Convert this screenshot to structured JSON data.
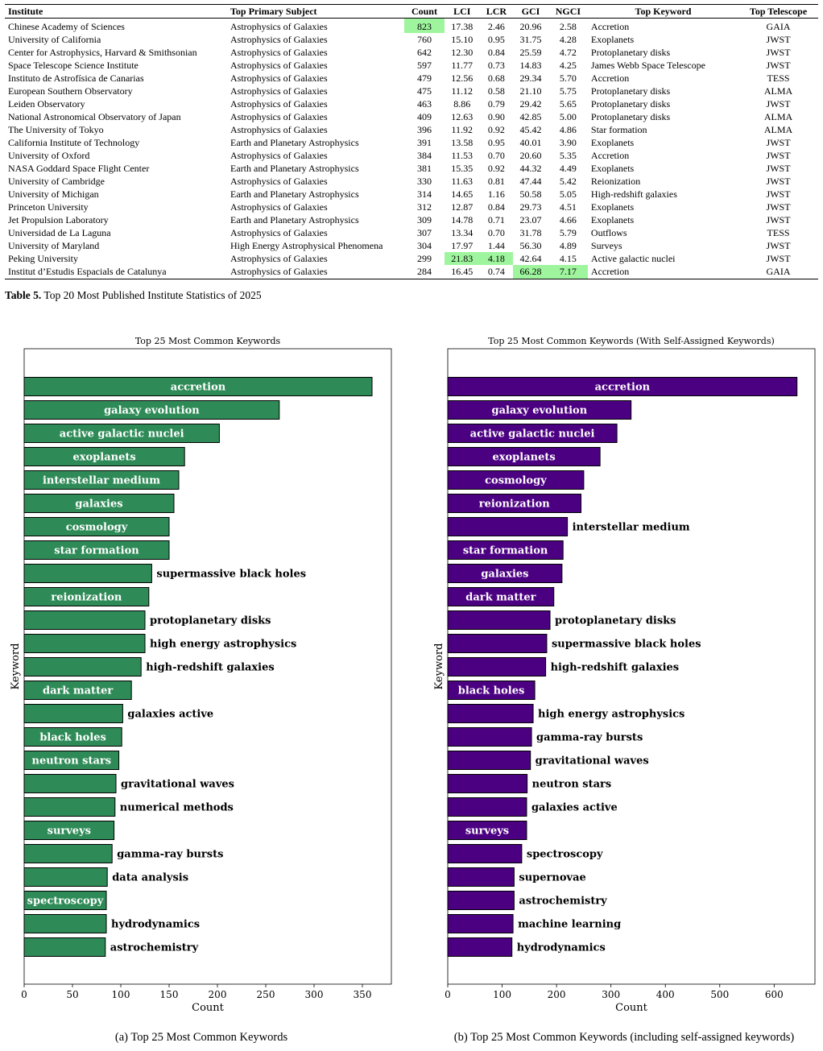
{
  "table": {
    "columns": [
      "Institute",
      "Top Primary Subject",
      "Count",
      "LCI",
      "LCR",
      "GCI",
      "NGCI",
      "Top Keyword",
      "Top Telescope"
    ],
    "rows": [
      [
        "Chinese Academy of Sciences",
        "Astrophysics of Galaxies",
        "823",
        "17.38",
        "2.46",
        "20.96",
        "2.58",
        "Accretion",
        "GAIA"
      ],
      [
        "University of California",
        "Astrophysics of Galaxies",
        "760",
        "15.10",
        "0.95",
        "31.75",
        "4.28",
        "Exoplanets",
        "JWST"
      ],
      [
        "Center for Astrophysics, Harvard & Smithsonian",
        "Astrophysics of Galaxies",
        "642",
        "12.30",
        "0.84",
        "25.59",
        "4.72",
        "Protoplanetary disks",
        "JWST"
      ],
      [
        "Space Telescope Science Institute",
        "Astrophysics of Galaxies",
        "597",
        "11.77",
        "0.73",
        "14.83",
        "4.25",
        "James Webb Space Telescope",
        "JWST"
      ],
      [
        "Instituto de Astrofísica de Canarias",
        "Astrophysics of Galaxies",
        "479",
        "12.56",
        "0.68",
        "29.34",
        "5.70",
        "Accretion",
        "TESS"
      ],
      [
        "European Southern Observatory",
        "Astrophysics of Galaxies",
        "475",
        "11.12",
        "0.58",
        "21.10",
        "5.75",
        "Protoplanetary disks",
        "ALMA"
      ],
      [
        "Leiden Observatory",
        "Astrophysics of Galaxies",
        "463",
        "8.86",
        "0.79",
        "29.42",
        "5.65",
        "Protoplanetary disks",
        "JWST"
      ],
      [
        "National Astronomical Observatory of Japan",
        "Astrophysics of Galaxies",
        "409",
        "12.63",
        "0.90",
        "42.85",
        "5.00",
        "Protoplanetary disks",
        "ALMA"
      ],
      [
        "The University of Tokyo",
        "Astrophysics of Galaxies",
        "396",
        "11.92",
        "0.92",
        "45.42",
        "4.86",
        "Star formation",
        "ALMA"
      ],
      [
        "California Institute of Technology",
        "Earth and Planetary Astrophysics",
        "391",
        "13.58",
        "0.95",
        "40.01",
        "3.90",
        "Exoplanets",
        "JWST"
      ],
      [
        "University of Oxford",
        "Astrophysics of Galaxies",
        "384",
        "11.53",
        "0.70",
        "20.60",
        "5.35",
        "Accretion",
        "JWST"
      ],
      [
        "NASA Goddard Space Flight Center",
        "Earth and Planetary Astrophysics",
        "381",
        "15.35",
        "0.92",
        "44.32",
        "4.49",
        "Exoplanets",
        "JWST"
      ],
      [
        "University of Cambridge",
        "Astrophysics of Galaxies",
        "330",
        "11.63",
        "0.81",
        "47.44",
        "5.42",
        "Reionization",
        "JWST"
      ],
      [
        "University of Michigan",
        "Earth and Planetary Astrophysics",
        "314",
        "14.65",
        "1.16",
        "50.58",
        "5.05",
        "High-redshift galaxies",
        "JWST"
      ],
      [
        "Princeton University",
        "Astrophysics of Galaxies",
        "312",
        "12.87",
        "0.84",
        "29.73",
        "4.51",
        "Exoplanets",
        "JWST"
      ],
      [
        "Jet Propulsion Laboratory",
        "Earth and Planetary Astrophysics",
        "309",
        "14.78",
        "0.71",
        "23.07",
        "4.66",
        "Exoplanets",
        "JWST"
      ],
      [
        "Universidad de La Laguna",
        "Astrophysics of Galaxies",
        "307",
        "13.34",
        "0.70",
        "31.78",
        "5.79",
        "Outflows",
        "TESS"
      ],
      [
        "University of Maryland",
        "High Energy Astrophysical Phenomena",
        "304",
        "17.97",
        "1.44",
        "56.30",
        "4.89",
        "Surveys",
        "JWST"
      ],
      [
        "Peking University",
        "Astrophysics of Galaxies",
        "299",
        "21.83",
        "4.18",
        "42.64",
        "4.15",
        "Active galactic nuclei",
        "JWST"
      ],
      [
        "Institut d’Estudis Espacials de Catalunya",
        "Astrophysics of Galaxies",
        "284",
        "16.45",
        "0.74",
        "66.28",
        "7.17",
        "Accretion",
        "GAIA"
      ]
    ],
    "highlights": [
      [
        0,
        2
      ],
      [
        18,
        3
      ],
      [
        18,
        4
      ],
      [
        19,
        5
      ],
      [
        19,
        6
      ]
    ],
    "highlight_color": "#9ef59e",
    "caption_label": "Table 5.",
    "caption_text": "Top 20 Most Published Institute Statistics of 2025"
  },
  "chart_data": [
    {
      "type": "bar",
      "orientation": "horizontal",
      "title": "Top 25 Most Common Keywords",
      "xlabel": "Count",
      "ylabel": "Keyword",
      "xlim": [
        0,
        380
      ],
      "xticks": [
        0,
        50,
        100,
        150,
        200,
        250,
        300,
        350
      ],
      "color": "#2e8b57",
      "categories": [
        "accretion",
        "galaxy evolution",
        "active galactic nuclei",
        "exoplanets",
        "interstellar medium",
        "galaxies",
        "cosmology",
        "star formation",
        "supermassive black holes",
        "reionization",
        "protoplanetary disks",
        "high energy astrophysics",
        "high-redshift galaxies",
        "dark matter",
        "galaxies active",
        "black holes",
        "neutron stars",
        "gravitational waves",
        "numerical methods",
        "surveys",
        "gamma-ray bursts",
        "data analysis",
        "spectroscopy",
        "hydrodynamics",
        "astrochemistry"
      ],
      "values": [
        360,
        264,
        202,
        166,
        160,
        155,
        150,
        150,
        132,
        129,
        125,
        125,
        121,
        111,
        102,
        101,
        98,
        95,
        94,
        93,
        91,
        86,
        85,
        85,
        84
      ],
      "caption": "(a) Top 25 Most Common Keywords"
    },
    {
      "type": "bar",
      "orientation": "horizontal",
      "title": "Top 25 Most Common Keywords (With Self-Assigned Keywords)",
      "xlabel": "Count",
      "ylabel": "Keyword",
      "xlim": [
        0,
        675
      ],
      "xticks": [
        0,
        100,
        200,
        300,
        400,
        500,
        600
      ],
      "color": "#4b0082",
      "categories": [
        "accretion",
        "galaxy evolution",
        "active galactic nuclei",
        "exoplanets",
        "cosmology",
        "reionization",
        "interstellar medium",
        "star formation",
        "galaxies",
        "dark matter",
        "protoplanetary disks",
        "supermassive black holes",
        "high-redshift galaxies",
        "black holes",
        "high energy astrophysics",
        "gamma-ray bursts",
        "gravitational waves",
        "neutron stars",
        "galaxies active",
        "surveys",
        "spectroscopy",
        "supernovae",
        "astrochemistry",
        "machine learning",
        "hydrodynamics"
      ],
      "values": [
        642,
        337,
        311,
        280,
        250,
        245,
        220,
        212,
        210,
        195,
        188,
        182,
        180,
        160,
        157,
        154,
        152,
        146,
        145,
        145,
        136,
        122,
        122,
        120,
        118
      ],
      "caption": "(b) Top 25 Most Common Keywords (including self-assigned keywords)"
    }
  ]
}
